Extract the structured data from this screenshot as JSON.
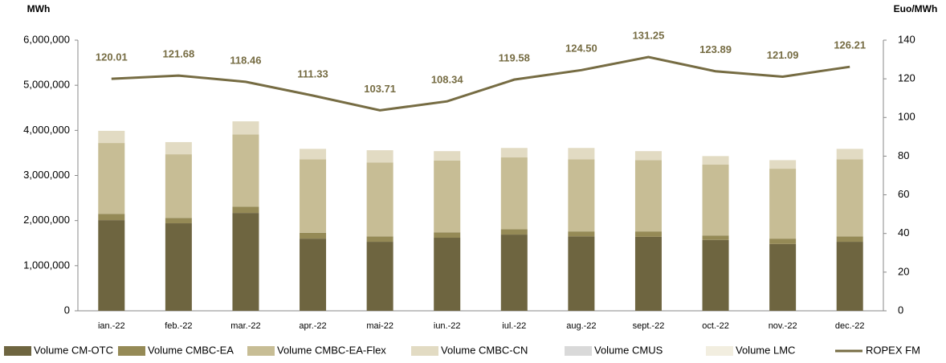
{
  "chart_data": {
    "type": "bar",
    "y_axis_label": "MWh",
    "y2_axis_label": "Euo/MWh",
    "categories": [
      "ian.-22",
      "feb.-22",
      "mar.-22",
      "apr.-22",
      "mai-22",
      "iun.-22",
      "iul.-22",
      "aug.-22",
      "sept.-22",
      "oct.-22",
      "nov.-22",
      "dec.-22"
    ],
    "stacked": true,
    "series": [
      {
        "name": "Volume CM-OTC",
        "color": "#6e6540",
        "values": [
          2010000,
          1940000,
          2170000,
          1600000,
          1530000,
          1620000,
          1690000,
          1650000,
          1640000,
          1570000,
          1480000,
          1530000
        ]
      },
      {
        "name": "Volume CMBC-EA",
        "color": "#958a56",
        "values": [
          140000,
          120000,
          140000,
          130000,
          120000,
          120000,
          120000,
          110000,
          120000,
          100000,
          120000,
          120000
        ]
      },
      {
        "name": "Volume CMBC-EA-Flex",
        "color": "#c7bd95",
        "values": [
          1570000,
          1410000,
          1600000,
          1630000,
          1640000,
          1590000,
          1590000,
          1600000,
          1580000,
          1570000,
          1550000,
          1710000
        ]
      },
      {
        "name": "Volume CMBC-CN",
        "color": "#e2dbc3",
        "values": [
          270000,
          270000,
          290000,
          230000,
          270000,
          210000,
          210000,
          250000,
          200000,
          190000,
          190000,
          230000
        ]
      },
      {
        "name": "Volume CMUS",
        "color": "#d9d9d9",
        "values": [
          0,
          0,
          0,
          0,
          0,
          0,
          0,
          0,
          0,
          0,
          0,
          0
        ]
      },
      {
        "name": "Volume LMC",
        "color": "#f2eee0",
        "values": [
          0,
          0,
          0,
          0,
          0,
          0,
          0,
          0,
          0,
          0,
          0,
          0
        ]
      },
      {
        "name": "ROPEX FM",
        "color": "#766c43",
        "type": "line",
        "axis": "y2",
        "values": [
          120.01,
          121.68,
          118.46,
          111.33,
          103.71,
          108.34,
          119.58,
          124.5,
          131.25,
          123.89,
          121.09,
          126.21
        ],
        "value_labels": [
          "120.01",
          "121.68",
          "118.46",
          "111.33",
          "103.71",
          "108.34",
          "119.58",
          "124.50",
          "131.25",
          "123.89",
          "121.09",
          "126.21"
        ]
      }
    ],
    "ylim": [
      0,
      6000000
    ],
    "yticks": [
      0,
      {
        "value": 1000000,
        "label": "1,000,000"
      },
      {
        "value": 2000000,
        "label": "2,000,000"
      },
      {
        "value": 3000000,
        "label": "3,000,000"
      },
      {
        "value": 4000000,
        "label": "4,000,000"
      },
      {
        "value": 5000000,
        "label": "5,000,000"
      },
      {
        "value": 6000000,
        "label": "6,000,000"
      }
    ],
    "y2lim": [
      0,
      140
    ],
    "y2ticks": [
      0,
      20,
      40,
      60,
      80,
      100,
      120,
      140
    ],
    "grid": false,
    "legend": "bottom"
  }
}
